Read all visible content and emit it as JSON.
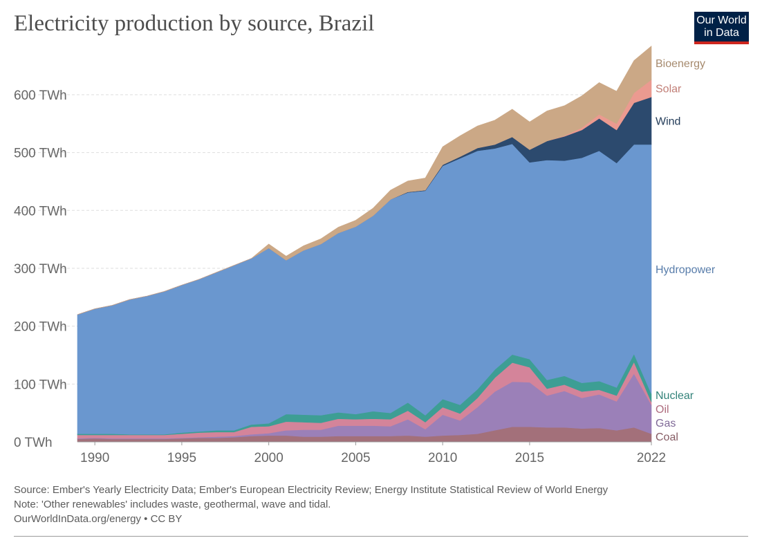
{
  "title": "Electricity production by source, Brazil",
  "logo": {
    "line1": "Our World",
    "line2": "in Data"
  },
  "footer": {
    "source": "Source: Ember's Yearly Electricity Data; Ember's European Electricity Review; Energy Institute Statistical Review of World Energy",
    "note": "Note: 'Other renewables' includes waste, geothermal, wave and tidal.",
    "credit": "OurWorldInData.org/energy • CC BY"
  },
  "chart_data": {
    "type": "area",
    "stacked": true,
    "ylim": [
      0,
      680
    ],
    "y_ticks": [
      0,
      100,
      200,
      300,
      400,
      500,
      600
    ],
    "y_tick_labels": [
      "0 TWh",
      "100 TWh",
      "200 TWh",
      "300 TWh",
      "400 TWh",
      "500 TWh",
      "600 TWh"
    ],
    "x_ticks": [
      1990,
      1995,
      2000,
      2005,
      2010,
      2015,
      2022
    ],
    "x_tick_labels": [
      "1990",
      "1995",
      "2000",
      "2005",
      "2010",
      "2015",
      "2022"
    ],
    "grid": true,
    "legend": "right-inline",
    "x": [
      1989,
      1990,
      1991,
      1992,
      1993,
      1994,
      1995,
      1996,
      1997,
      1998,
      1999,
      2000,
      2001,
      2002,
      2003,
      2004,
      2005,
      2006,
      2007,
      2008,
      2009,
      2010,
      2011,
      2012,
      2013,
      2014,
      2015,
      2016,
      2017,
      2018,
      2019,
      2020,
      2021,
      2022
    ],
    "series": [
      {
        "name": "Coal",
        "color": "#a3707a",
        "values": [
          5,
          6,
          5,
          5,
          5,
          5,
          6,
          7,
          7,
          8,
          10,
          11,
          11,
          9,
          9,
          10,
          10,
          10,
          10,
          11,
          9,
          11,
          12,
          14,
          20,
          26,
          26,
          25,
          25,
          23,
          24,
          20,
          25,
          14
        ]
      },
      {
        "name": "Gas",
        "color": "#9b80b8",
        "values": [
          1,
          1,
          1,
          1,
          1,
          1,
          1,
          1,
          2,
          2,
          3,
          4,
          9,
          12,
          12,
          18,
          18,
          18,
          17,
          28,
          13,
          36,
          25,
          46,
          67,
          78,
          77,
          55,
          63,
          53,
          58,
          50,
          93,
          50
        ]
      },
      {
        "name": "Oil",
        "color": "#d4849a",
        "values": [
          6,
          5,
          6,
          6,
          6,
          6,
          7,
          8,
          8,
          7,
          13,
          12,
          15,
          13,
          12,
          12,
          11,
          12,
          12,
          15,
          12,
          13,
          12,
          16,
          24,
          33,
          26,
          12,
          11,
          11,
          8,
          10,
          20,
          5
        ]
      },
      {
        "name": "Nuclear",
        "color": "#3d9e94",
        "values": [
          2,
          2,
          2,
          1,
          1,
          1,
          2,
          2,
          3,
          3,
          4,
          5,
          13,
          13,
          13,
          11,
          9,
          13,
          11,
          14,
          12,
          14,
          15,
          15,
          14,
          14,
          14,
          15,
          15,
          15,
          15,
          14,
          14,
          14
        ]
      },
      {
        "name": "Hydropower",
        "color": "#6a97cf",
        "values": [
          206,
          216,
          222,
          233,
          239,
          247,
          255,
          263,
          273,
          285,
          287,
          303,
          266,
          284,
          296,
          310,
          324,
          338,
          369,
          363,
          388,
          403,
          426,
          412,
          382,
          364,
          340,
          380,
          372,
          389,
          398,
          388,
          362,
          431
        ]
      },
      {
        "name": "Wind",
        "color": "#2c4a6e",
        "values": [
          0,
          0,
          0,
          0,
          0,
          0,
          0,
          0,
          0,
          0,
          0,
          0,
          0,
          0,
          0,
          0,
          0,
          0,
          0,
          1,
          1,
          2,
          3,
          5,
          7,
          12,
          22,
          33,
          42,
          48,
          56,
          57,
          72,
          82
        ]
      },
      {
        "name": "Solar",
        "color": "#eb9a90",
        "values": [
          0,
          0,
          0,
          0,
          0,
          0,
          0,
          0,
          0,
          0,
          0,
          0,
          0,
          0,
          0,
          0,
          0,
          0,
          0,
          0,
          0,
          0,
          0,
          0,
          0,
          0,
          0,
          0,
          1,
          4,
          7,
          11,
          17,
          30
        ]
      },
      {
        "name": "Bioenergy",
        "color": "#cba886",
        "values": [
          0,
          0,
          0,
          0,
          0,
          0,
          0,
          0,
          0,
          0,
          0,
          7,
          7,
          8,
          9,
          10,
          11,
          13,
          16,
          19,
          21,
          31,
          36,
          38,
          42,
          48,
          48,
          52,
          52,
          55,
          55,
          56,
          56,
          58
        ]
      }
    ]
  }
}
